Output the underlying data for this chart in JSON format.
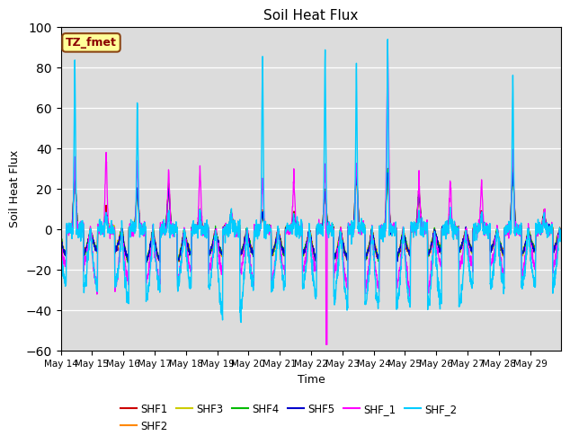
{
  "title": "Soil Heat Flux",
  "xlabel": "Time",
  "ylabel": "Soil Heat Flux",
  "ylim": [
    -60,
    100
  ],
  "annotation": "TZ_fmet",
  "annotation_color": "#8B0000",
  "annotation_bg": "#FFFF99",
  "background_color": "#DCDCDC",
  "series": [
    "SHF1",
    "SHF2",
    "SHF3",
    "SHF4",
    "SHF5",
    "SHF_1",
    "SHF_2"
  ],
  "colors": {
    "SHF1": "#CC0000",
    "SHF2": "#FF8800",
    "SHF3": "#CCCC00",
    "SHF4": "#00BB00",
    "SHF5": "#0000CC",
    "SHF_1": "#FF00FF",
    "SHF_2": "#00CCFF"
  },
  "x_tick_labels": [
    "May 14",
    "May 15",
    "May 16",
    "May 17",
    "May 18",
    "May 19",
    "May 20",
    "May 21",
    "May 22",
    "May 23",
    "May 24",
    "May 25",
    "May 26",
    "May 27",
    "May 28",
    "May 29"
  ],
  "num_days": 16,
  "ppd": 144,
  "seed": 42
}
